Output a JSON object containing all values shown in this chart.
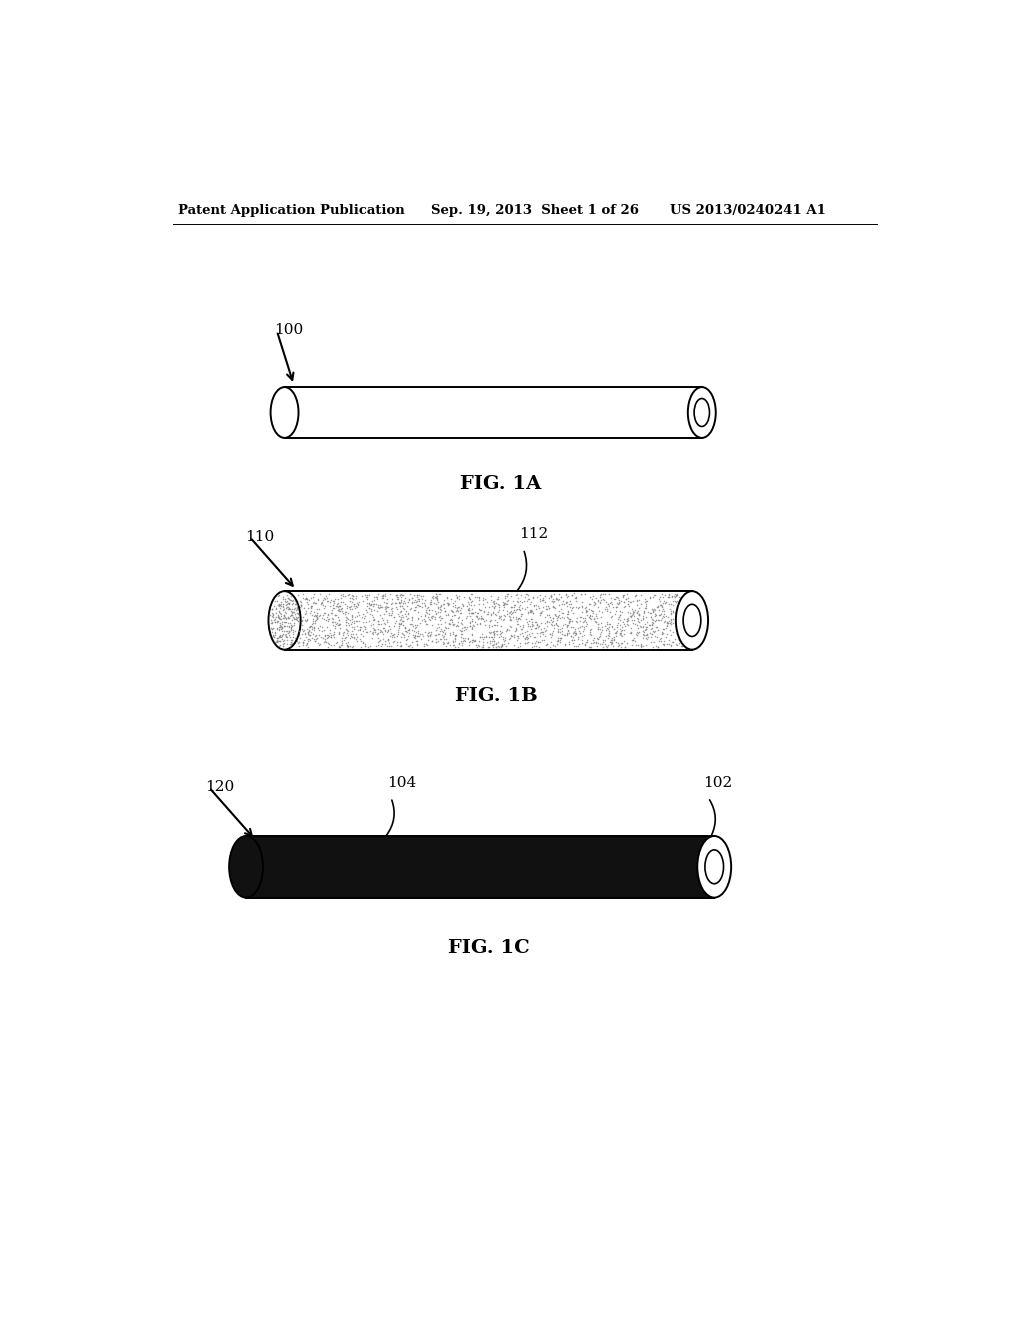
{
  "bg_color": "#ffffff",
  "header_left": "Patent Application Publication",
  "header_mid": "Sep. 19, 2013  Sheet 1 of 26",
  "header_right": "US 2013/0240241 A1",
  "header_fontsize": 9.5,
  "fig1a_label": "FIG. 1A",
  "fig1b_label": "FIG. 1B",
  "fig1c_label": "FIG. 1C",
  "ref100_label": "100",
  "ref110_label": "110",
  "ref112_label": "112",
  "ref120_label": "120",
  "ref104_label": "104",
  "ref102_label": "102",
  "label_fontsize": 11,
  "fig_label_fontsize": 14
}
